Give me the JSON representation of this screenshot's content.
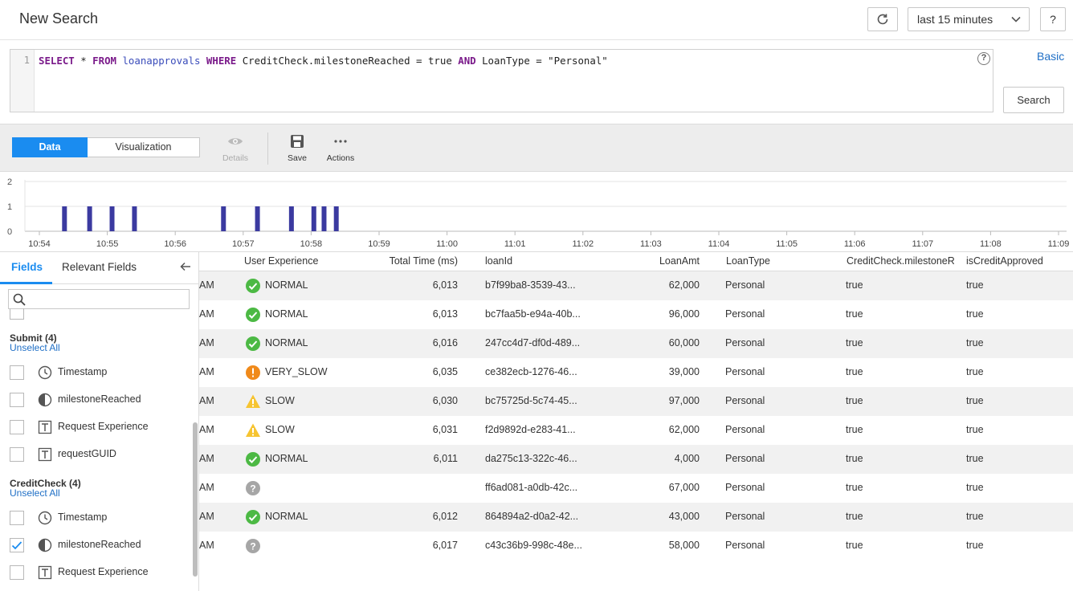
{
  "header": {
    "title": "New Search",
    "time_range": "last 15 minutes",
    "help_label": "?"
  },
  "query": {
    "line_number": "1",
    "tokens": [
      {
        "t": "SELECT",
        "c": "kw"
      },
      {
        "t": " * ",
        "c": ""
      },
      {
        "t": "FROM",
        "c": "kw"
      },
      {
        "t": " ",
        "c": ""
      },
      {
        "t": "loanapprovals",
        "c": "ident"
      },
      {
        "t": " ",
        "c": ""
      },
      {
        "t": "WHERE",
        "c": "kw"
      },
      {
        "t": " CreditCheck.milestoneReached = true ",
        "c": ""
      },
      {
        "t": "AND",
        "c": "kw"
      },
      {
        "t": " LoanType = \"Personal\"",
        "c": ""
      }
    ],
    "basic_link": "Basic",
    "search_button": "Search"
  },
  "toolbar": {
    "tab_data": "Data",
    "tab_visualization": "Visualization",
    "details_label": "Details",
    "save_label": "Save",
    "actions_label": "Actions"
  },
  "chart_data": {
    "type": "bar",
    "y_ticks": [
      "2",
      "1",
      "0"
    ],
    "ylim": [
      0,
      2
    ],
    "x_ticks": [
      "10:54",
      "10:55",
      "10:56",
      "10:57",
      "10:58",
      "10:59",
      "11:00",
      "11:01",
      "11:02",
      "11:03",
      "11:04",
      "11:05",
      "11:06",
      "11:07",
      "11:08",
      "11:09"
    ],
    "bars": [
      {
        "t": 10.37,
        "v": 1
      },
      {
        "t": 10.74,
        "v": 1
      },
      {
        "t": 11.07,
        "v": 1
      },
      {
        "t": 11.4,
        "v": 1
      },
      {
        "t": 12.71,
        "v": 1
      },
      {
        "t": 13.21,
        "v": 1
      },
      {
        "t": 13.71,
        "v": 1
      },
      {
        "t": 14.04,
        "v": 1
      },
      {
        "t": 14.19,
        "v": 1
      },
      {
        "t": 14.37,
        "v": 1
      }
    ],
    "color": "#3b3aa0"
  },
  "sidebar": {
    "tab_fields": "Fields",
    "tab_relevant": "Relevant Fields",
    "search_placeholder": "",
    "groups": [
      {
        "title": "Submit (4)",
        "unselect": "Unselect All",
        "fields": [
          {
            "label": "Timestamp",
            "icon": "clock",
            "checked": false
          },
          {
            "label": "milestoneReached",
            "icon": "boolean",
            "checked": false
          },
          {
            "label": "Request Experience",
            "icon": "text",
            "checked": false
          },
          {
            "label": "requestGUID",
            "icon": "text",
            "checked": false
          }
        ]
      },
      {
        "title": "CreditCheck (4)",
        "unselect": "Unselect All",
        "fields": [
          {
            "label": "Timestamp",
            "icon": "clock",
            "checked": false
          },
          {
            "label": "milestoneReached",
            "icon": "boolean",
            "checked": true
          },
          {
            "label": "Request Experience",
            "icon": "text",
            "checked": false
          }
        ]
      }
    ]
  },
  "table": {
    "columns": [
      "User Experience",
      "Total Time (ms)",
      "loanId",
      "LoanAmt",
      "LoanType",
      "CreditCheck.milestoneR",
      "isCreditApproved"
    ],
    "rows": [
      {
        "time": "AM",
        "ue": "NORMAL",
        "status": "ok",
        "total": "6,013",
        "loanId": "b7f99ba8-3539-43...",
        "amt": "62,000",
        "type": "Personal",
        "milestone": "true",
        "approved": "true"
      },
      {
        "time": "AM",
        "ue": "NORMAL",
        "status": "ok",
        "total": "6,013",
        "loanId": "bc7faa5b-e94a-40b...",
        "amt": "96,000",
        "type": "Personal",
        "milestone": "true",
        "approved": "true"
      },
      {
        "time": "AM",
        "ue": "NORMAL",
        "status": "ok",
        "total": "6,016",
        "loanId": "247cc4d7-df0d-489...",
        "amt": "60,000",
        "type": "Personal",
        "milestone": "true",
        "approved": "true"
      },
      {
        "time": "AM",
        "ue": "VERY_SLOW",
        "status": "veryslow",
        "total": "6,035",
        "loanId": "ce382ecb-1276-46...",
        "amt": "39,000",
        "type": "Personal",
        "milestone": "true",
        "approved": "true"
      },
      {
        "time": "AM",
        "ue": "SLOW",
        "status": "slow",
        "total": "6,030",
        "loanId": "bc75725d-5c74-45...",
        "amt": "97,000",
        "type": "Personal",
        "milestone": "true",
        "approved": "true"
      },
      {
        "time": "AM",
        "ue": "SLOW",
        "status": "slow",
        "total": "6,031",
        "loanId": "f2d9892d-e283-41...",
        "amt": "62,000",
        "type": "Personal",
        "milestone": "true",
        "approved": "true"
      },
      {
        "time": "AM",
        "ue": "NORMAL",
        "status": "ok",
        "total": "6,011",
        "loanId": "da275c13-322c-46...",
        "amt": "4,000",
        "type": "Personal",
        "milestone": "true",
        "approved": "true"
      },
      {
        "time": "AM",
        "ue": "",
        "status": "unknown",
        "total": "",
        "loanId": "ff6ad081-a0db-42c...",
        "amt": "67,000",
        "type": "Personal",
        "milestone": "true",
        "approved": "true"
      },
      {
        "time": "AM",
        "ue": "NORMAL",
        "status": "ok",
        "total": "6,012",
        "loanId": "864894a2-d0a2-42...",
        "amt": "43,000",
        "type": "Personal",
        "milestone": "true",
        "approved": "true"
      },
      {
        "time": "AM",
        "ue": "",
        "status": "unknown",
        "total": "6,017",
        "loanId": "c43c36b9-998c-48e...",
        "amt": "58,000",
        "type": "Personal",
        "milestone": "true",
        "approved": "true"
      }
    ]
  }
}
